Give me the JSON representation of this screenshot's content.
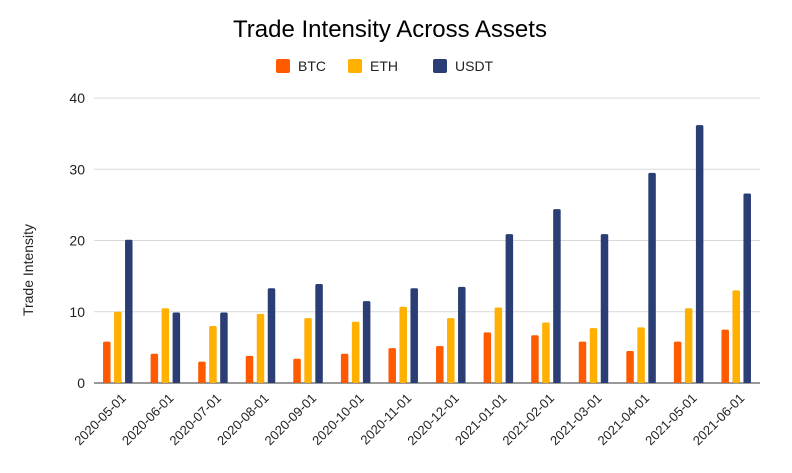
{
  "chart_data": {
    "type": "bar",
    "title": "Trade Intensity Across Assets",
    "xlabel": "",
    "ylabel": "Trade Intensity",
    "ylim": [
      0,
      40
    ],
    "yticks": [
      "0",
      "10",
      "20",
      "30",
      "40"
    ],
    "grid": true,
    "legend_position": "top",
    "categories": [
      "2020-05-01",
      "2020-06-01",
      "2020-07-01",
      "2020-08-01",
      "2020-09-01",
      "2020-10-01",
      "2020-11-01",
      "2020-12-01",
      "2021-01-01",
      "2021-02-01",
      "2021-03-01",
      "2021-04-01",
      "2021-05-01",
      "2021-06-01"
    ],
    "series": [
      {
        "name": "BTC",
        "color": "#ff5a00",
        "values": [
          5.8,
          4.1,
          3.0,
          3.8,
          3.4,
          4.1,
          4.9,
          5.2,
          7.1,
          6.7,
          5.8,
          4.5,
          5.8,
          7.5
        ]
      },
      {
        "name": "ETH",
        "color": "#ffb000",
        "values": [
          10.0,
          10.5,
          8.0,
          9.7,
          9.1,
          8.6,
          10.7,
          9.1,
          10.6,
          8.5,
          7.7,
          7.8,
          10.5,
          13.0
        ]
      },
      {
        "name": "USDT",
        "color": "#2a3d74",
        "values": [
          20.1,
          9.9,
          9.9,
          13.3,
          13.9,
          11.5,
          13.3,
          13.5,
          20.9,
          24.4,
          20.9,
          29.5,
          36.2,
          26.6
        ]
      }
    ]
  }
}
